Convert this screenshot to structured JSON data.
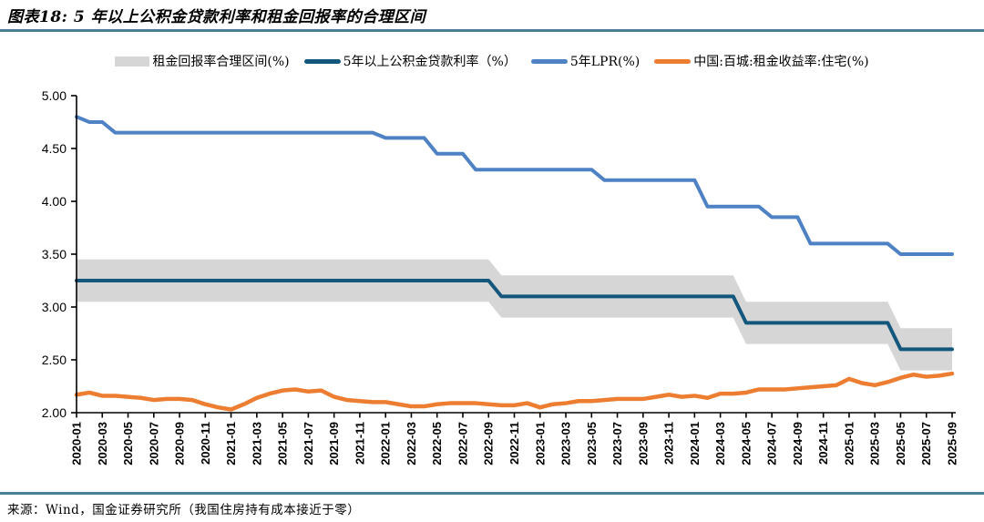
{
  "page": {
    "title": "图表18: 5 年以上公积金贷款利率和租金回报率的合理区间",
    "source": "来源：Wind，国金证券研究所（我国住房持有成本接近于零）"
  },
  "colors": {
    "rule": "#4a7f95",
    "band": "#d6d6d6",
    "provident": "#14577d",
    "lpr": "#4e82c4",
    "rental": "#ed7d31",
    "axis": "#000000",
    "text": "#000000"
  },
  "legend": [
    {
      "label": "租金回报率合理区间(%)",
      "swatch": "band",
      "color_key": "band"
    },
    {
      "label": "5年以上公积金贷款利率（%）",
      "swatch": "line",
      "color_key": "provident"
    },
    {
      "label": "5年LPR(%)",
      "swatch": "line",
      "color_key": "lpr"
    },
    {
      "label": "中国:百城:租金收益率:住宅(%)",
      "swatch": "line",
      "color_key": "rental"
    }
  ],
  "chart_data": {
    "type": "line",
    "title": "图表18: 5 年以上公积金贷款利率和租金回报率的合理区间",
    "x_start": "2020-01",
    "x_freq": "monthly",
    "x_ticks": [
      "2020-01",
      "2020-03",
      "2020-05",
      "2020-07",
      "2020-09",
      "2020-11",
      "2021-01",
      "2021-03",
      "2021-05",
      "2021-07",
      "2021-09",
      "2021-11",
      "2022-01",
      "2022-03",
      "2022-05",
      "2022-07",
      "2022-09",
      "2022-11",
      "2023-01",
      "2023-03",
      "2023-05",
      "2023-07",
      "2023-09",
      "2023-11",
      "2024-01",
      "2024-03",
      "2024-05",
      "2024-07",
      "2024-09",
      "2024-11",
      "2025-01",
      "2025-03",
      "2025-05",
      "2025-07",
      "2025-09"
    ],
    "y_ticks": [
      "5.00",
      "4.50",
      "4.00",
      "3.50",
      "3.00",
      "2.50",
      "2.00"
    ],
    "ylim": [
      2.0,
      5.0
    ],
    "grid": false,
    "legend_position": "top",
    "band": {
      "name": "租金回报率合理区间(%)",
      "color_key": "band",
      "upper": [
        3.45,
        3.45,
        3.45,
        3.45,
        3.45,
        3.45,
        3.45,
        3.45,
        3.45,
        3.45,
        3.45,
        3.45,
        3.45,
        3.45,
        3.45,
        3.45,
        3.45,
        3.45,
        3.45,
        3.45,
        3.45,
        3.45,
        3.45,
        3.45,
        3.45,
        3.45,
        3.45,
        3.45,
        3.45,
        3.45,
        3.45,
        3.45,
        3.45,
        3.3,
        3.3,
        3.3,
        3.3,
        3.3,
        3.3,
        3.3,
        3.3,
        3.3,
        3.3,
        3.3,
        3.3,
        3.3,
        3.3,
        3.3,
        3.3,
        3.3,
        3.3,
        3.3,
        3.05,
        3.05,
        3.05,
        3.05,
        3.05,
        3.05,
        3.05,
        3.05,
        3.05,
        3.05,
        3.05,
        3.05,
        2.8,
        2.8,
        2.8,
        2.8,
        2.8
      ],
      "lower": [
        3.05,
        3.05,
        3.05,
        3.05,
        3.05,
        3.05,
        3.05,
        3.05,
        3.05,
        3.05,
        3.05,
        3.05,
        3.05,
        3.05,
        3.05,
        3.05,
        3.05,
        3.05,
        3.05,
        3.05,
        3.05,
        3.05,
        3.05,
        3.05,
        3.05,
        3.05,
        3.05,
        3.05,
        3.05,
        3.05,
        3.05,
        3.05,
        3.05,
        2.9,
        2.9,
        2.9,
        2.9,
        2.9,
        2.9,
        2.9,
        2.9,
        2.9,
        2.9,
        2.9,
        2.9,
        2.9,
        2.9,
        2.9,
        2.9,
        2.9,
        2.9,
        2.9,
        2.65,
        2.65,
        2.65,
        2.65,
        2.65,
        2.65,
        2.65,
        2.65,
        2.65,
        2.65,
        2.65,
        2.65,
        2.4,
        2.4,
        2.4,
        2.4,
        2.4
      ]
    },
    "series": [
      {
        "name": "5年以上公积金贷款利率（%）",
        "color_key": "provident",
        "values": [
          3.25,
          3.25,
          3.25,
          3.25,
          3.25,
          3.25,
          3.25,
          3.25,
          3.25,
          3.25,
          3.25,
          3.25,
          3.25,
          3.25,
          3.25,
          3.25,
          3.25,
          3.25,
          3.25,
          3.25,
          3.25,
          3.25,
          3.25,
          3.25,
          3.25,
          3.25,
          3.25,
          3.25,
          3.25,
          3.25,
          3.25,
          3.25,
          3.25,
          3.1,
          3.1,
          3.1,
          3.1,
          3.1,
          3.1,
          3.1,
          3.1,
          3.1,
          3.1,
          3.1,
          3.1,
          3.1,
          3.1,
          3.1,
          3.1,
          3.1,
          3.1,
          3.1,
          2.85,
          2.85,
          2.85,
          2.85,
          2.85,
          2.85,
          2.85,
          2.85,
          2.85,
          2.85,
          2.85,
          2.85,
          2.6,
          2.6,
          2.6,
          2.6,
          2.6
        ]
      },
      {
        "name": "5年LPR(%)",
        "color_key": "lpr",
        "values": [
          4.8,
          4.75,
          4.75,
          4.65,
          4.65,
          4.65,
          4.65,
          4.65,
          4.65,
          4.65,
          4.65,
          4.65,
          4.65,
          4.65,
          4.65,
          4.65,
          4.65,
          4.65,
          4.65,
          4.65,
          4.65,
          4.65,
          4.65,
          4.65,
          4.6,
          4.6,
          4.6,
          4.6,
          4.45,
          4.45,
          4.45,
          4.3,
          4.3,
          4.3,
          4.3,
          4.3,
          4.3,
          4.3,
          4.3,
          4.3,
          4.3,
          4.2,
          4.2,
          4.2,
          4.2,
          4.2,
          4.2,
          4.2,
          4.2,
          3.95,
          3.95,
          3.95,
          3.95,
          3.95,
          3.85,
          3.85,
          3.85,
          3.6,
          3.6,
          3.6,
          3.6,
          3.6,
          3.6,
          3.6,
          3.5,
          3.5,
          3.5,
          3.5,
          3.5
        ]
      },
      {
        "name": "中国:百城:租金收益率:住宅(%)",
        "color_key": "rental",
        "values": [
          2.17,
          2.19,
          2.16,
          2.16,
          2.15,
          2.14,
          2.12,
          2.13,
          2.13,
          2.12,
          2.08,
          2.05,
          2.03,
          2.08,
          2.14,
          2.18,
          2.21,
          2.22,
          2.2,
          2.21,
          2.15,
          2.12,
          2.11,
          2.1,
          2.1,
          2.08,
          2.06,
          2.06,
          2.08,
          2.09,
          2.09,
          2.09,
          2.08,
          2.07,
          2.07,
          2.09,
          2.05,
          2.08,
          2.09,
          2.11,
          2.11,
          2.12,
          2.13,
          2.13,
          2.13,
          2.15,
          2.17,
          2.15,
          2.16,
          2.14,
          2.18,
          2.18,
          2.19,
          2.22,
          2.22,
          2.22,
          2.23,
          2.24,
          2.25,
          2.26,
          2.32,
          2.28,
          2.26,
          2.29,
          2.33,
          2.36,
          2.34,
          2.35,
          2.37
        ]
      }
    ]
  }
}
